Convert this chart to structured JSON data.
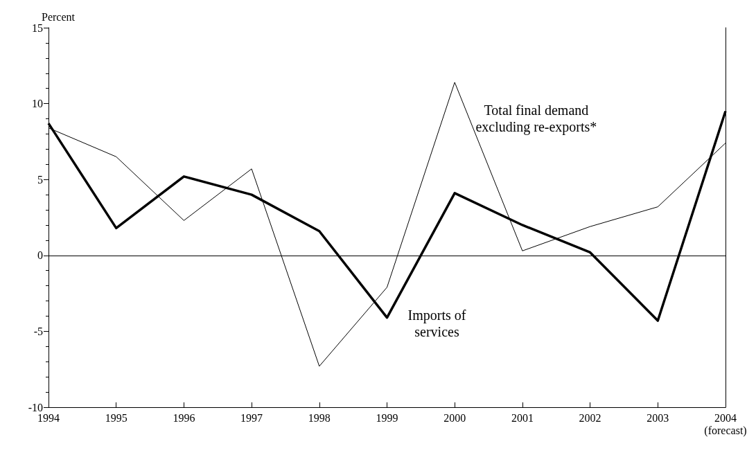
{
  "chart_data": {
    "type": "line",
    "ylabel": "Percent",
    "categories": [
      "1994",
      "1995",
      "1996",
      "1997",
      "1998",
      "1999",
      "2000",
      "2001",
      "2002",
      "2003",
      "2004\n(forecast)"
    ],
    "series": [
      {
        "name": "Total final demand\nexcluding re-exports*",
        "color": "#000000",
        "values": [
          8.4,
          6.5,
          2.3,
          5.7,
          -7.3,
          -2.1,
          11.4,
          0.3,
          1.9,
          3.2,
          7.4
        ]
      },
      {
        "name": "Imports of\nservices",
        "color": "#000000",
        "values": [
          8.7,
          1.8,
          5.2,
          4.0,
          1.6,
          -4.1,
          4.1,
          2.0,
          0.2,
          -4.3,
          9.5
        ]
      }
    ],
    "ylim": [
      -10,
      15
    ],
    "yticks": [
      -10,
      -5,
      0,
      5,
      10,
      15
    ],
    "ref_lines": [
      {
        "axis": "y",
        "value": 0,
        "color": "#000000"
      }
    ],
    "grid": false,
    "legend": false,
    "marker": "none",
    "line_style": "solid"
  }
}
